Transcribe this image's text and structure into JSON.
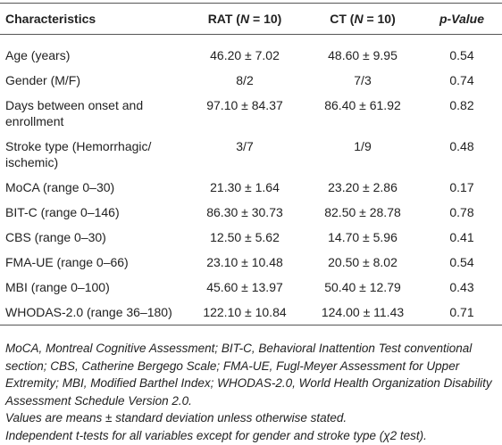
{
  "table": {
    "header": [
      [
        "Characteristics"
      ],
      [
        "RAT (",
        "N",
        " = 10)"
      ],
      [
        "CT (",
        "N",
        " = 10)"
      ],
      [
        "p-Value"
      ]
    ],
    "rows": [
      [
        "Age (years)",
        "46.20 ± 7.02",
        "48.60 ± 9.95",
        "0.54"
      ],
      [
        "Gender (M/F)",
        "8/2",
        "7/3",
        "0.74"
      ],
      [
        "Days between onset and enrollment",
        "97.10 ± 84.37",
        "86.40 ± 61.92",
        "0.82"
      ],
      [
        "Stroke type (Hemorrhagic/ ischemic)",
        "3/7",
        "1/9",
        "0.48"
      ],
      [
        "MoCA (range 0–30)",
        "21.30 ± 1.64",
        "23.20 ± 2.86",
        "0.17"
      ],
      [
        "BIT-C (range 0–146)",
        "86.30 ± 30.73",
        "82.50 ± 28.78",
        "0.78"
      ],
      [
        "CBS (range 0–30)",
        "12.50 ± 5.62",
        "14.70 ± 5.96",
        "0.41"
      ],
      [
        "FMA-UE (range 0–66)",
        "23.10 ± 10.48",
        "20.50 ± 8.02",
        "0.54"
      ],
      [
        "MBI (range 0–100)",
        "45.60 ± 13.97",
        "50.40 ± 12.79",
        "0.43"
      ],
      [
        "WHODAS-2.0 (range 36–180)",
        "122.10 ± 10.84",
        "124.00 ± 11.43",
        "0.71"
      ]
    ]
  },
  "footnotes": [
    "MoCA, Montreal Cognitive Assessment; BIT-C, Behavioral Inattention Test conventional section; CBS, Catherine Bergego Scale; FMA-UE, Fugl-Meyer Assessment for Upper Extremity; MBI, Modified Barthel Index; WHODAS-2.0, World Health Organization Disability Assessment Schedule Version 2.0.",
    "Values are means ± standard deviation unless otherwise stated.",
    "Independent t-tests for all variables except for gender and stroke type (χ2 test)."
  ]
}
